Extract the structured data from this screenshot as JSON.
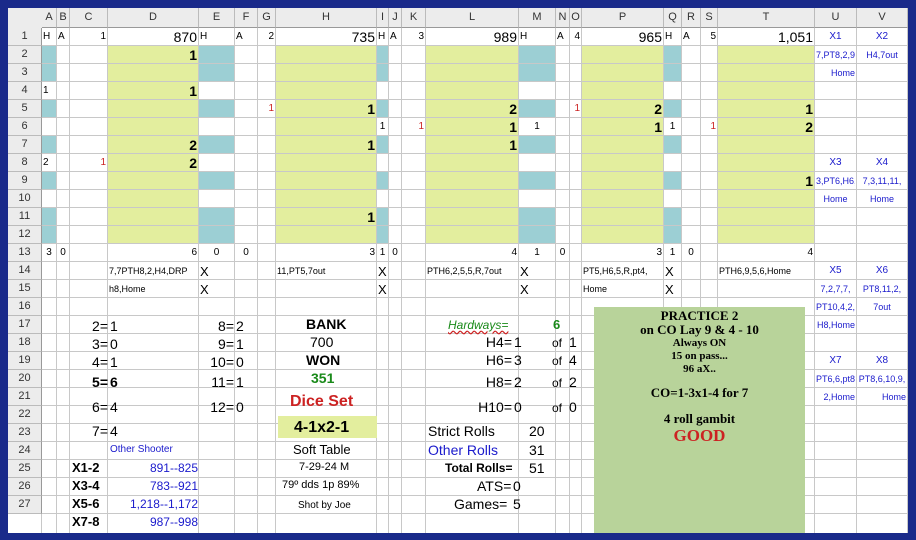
{
  "columns": [
    "A",
    "B",
    "C",
    "D",
    "E",
    "F",
    "G",
    "H",
    "I",
    "J",
    "K",
    "L",
    "M",
    "N",
    "O",
    "P",
    "Q",
    "R",
    "S",
    "T",
    "U",
    "V"
  ],
  "rows": [
    "1",
    "2",
    "3",
    "4",
    "5",
    "6",
    "7",
    "8",
    "9",
    "10",
    "11",
    "12",
    "13",
    "14",
    "15",
    "16",
    "17",
    "18",
    "19",
    "20",
    "21",
    "22",
    "23",
    "24",
    "25",
    "26",
    "27"
  ],
  "colors": {
    "teal": "#9ccfd4",
    "yellow": "#e3ee9e",
    "practice_bg": "#b8d39a",
    "blue_text": "#1a1acc",
    "red_text": "#cc2222",
    "green_text": "#1a8a1a",
    "frame": "#1a2a8a"
  },
  "blocks": [
    {
      "h": "H",
      "a": "A",
      "n": "1",
      "total": "870"
    },
    {
      "h": "H",
      "a": "A",
      "n": "2",
      "total": "735"
    },
    {
      "h": "H",
      "a": "A",
      "n": "3",
      "total": "989"
    },
    {
      "h": "H",
      "a": "A",
      "n": "4",
      "total": "965"
    },
    {
      "h": "H",
      "a": "A",
      "n": "5",
      "total": "1,051"
    }
  ],
  "cells": {
    "u1": "X1",
    "v1": "X2",
    "u2": "7,PT8,2,9,",
    "v2": "H4,7out",
    "u3": "Home",
    "d2": "1",
    "d4": "1",
    "d7": "2",
    "d8": "2",
    "d13": "6",
    "a4": "1",
    "a8": "2",
    "c8": "1",
    "a13": "3",
    "b13": "0",
    "e13": "0",
    "f13": "0",
    "g5": "1",
    "h5": "1",
    "h7": "1",
    "h11": "1",
    "i6": "1",
    "h13": "3",
    "i13": "1",
    "j13": "0",
    "k6": "1",
    "l5": "2",
    "l6": "1",
    "l7": "1",
    "m6": "1",
    "l13": "4",
    "m13": "1",
    "n13": "0",
    "o5": "1",
    "p5": "2",
    "p6": "1",
    "q6": "1",
    "p13": "3",
    "q13": "1",
    "r13": "0",
    "s6": "1",
    "t5": "1",
    "t6": "2",
    "t9": "1",
    "t13": "4",
    "u8": "X3",
    "v8": "X4",
    "u9": "3,PT6,H6,.",
    "v9": "7,3,11,11,",
    "u10": "Home",
    "v10": "Home",
    "u14": "X5",
    "v14": "X6",
    "u15": "7,2,7,7,",
    "v15": "PT8,11,2,",
    "u16": "PT10,4,2,",
    "v16": "7out",
    "u17": "H8,Home",
    "u19": "X7",
    "v19": "X8",
    "u20": "PT6,6,pt8,",
    "v20": "PT8,6,10,9,",
    "u21": "2,Home",
    "v21": "Home"
  },
  "roll_strings": [
    {
      "text": "7,7PTH8,2,H4,DRP",
      "mark": "X"
    },
    {
      "text": "h8,Home",
      "mark": "X"
    },
    {
      "text": "11,PT5,7out",
      "mark": "X"
    },
    {
      "text": "",
      "mark": "X"
    },
    {
      "text": "PTH6,2,5,5,R,7out",
      "mark": "X"
    },
    {
      "text": "",
      "mark": "X"
    },
    {
      "text": "PT5,H6,5,R,pt4,",
      "mark": "X"
    },
    {
      "text": "Home",
      "mark": "X"
    },
    {
      "text": "PTH6,9,5,6,Home",
      "mark": ""
    }
  ],
  "number_counts": [
    {
      "label": "2=",
      "value": "1"
    },
    {
      "label": "3=",
      "value": "0"
    },
    {
      "label": "4=",
      "value": "1"
    },
    {
      "label": "5=",
      "value": "6"
    },
    {
      "label": "6=",
      "value": "4"
    },
    {
      "label": "7=",
      "value": "4"
    },
    {
      "label": "8=",
      "value": "2"
    },
    {
      "label": "9=",
      "value": "1"
    },
    {
      "label": "10=",
      "value": "0"
    },
    {
      "label": "11=",
      "value": "1"
    },
    {
      "label": "12=",
      "value": "0"
    }
  ],
  "bank": {
    "bank_label": "BANK",
    "bank_value": "700",
    "won_label": "WON",
    "won_value": "351",
    "dice_set_label": "Dice Set",
    "dice_set_value": "4-1x2-1",
    "table": "Soft Table",
    "date": "7-29-24 M",
    "weather": "79º dds 1p 89%",
    "shooter": "Shot by Joe"
  },
  "other_shooter": {
    "title": "Other Shooter",
    "rows": [
      {
        "label": "X1-2",
        "value": "891--825"
      },
      {
        "label": "X3-4",
        "value": "783--921"
      },
      {
        "label": "X5-6",
        "value": "1,218--1,172"
      },
      {
        "label": "X7-8",
        "value": "987--998"
      }
    ]
  },
  "hardways": {
    "title": "Hardways=",
    "total": "6",
    "rows": [
      {
        "label": "H4=",
        "value": "1",
        "of": "of",
        "max": "1"
      },
      {
        "label": "H6=",
        "value": "3",
        "of": "of",
        "max": "4"
      },
      {
        "label": "H8=",
        "value": "2",
        "of": "of",
        "max": "2"
      },
      {
        "label": "H10=",
        "value": "0",
        "of": "of",
        "max": "0"
      }
    ]
  },
  "stats": {
    "strict_label": "Strict Rolls",
    "strict_value": "20",
    "other_label": "Other Rolls",
    "other_value": "31",
    "total_label": "Total Rolls=",
    "total_value": "51",
    "ats_label": "ATS=",
    "ats_value": "0",
    "games_label": "Games=",
    "games_value": "5"
  },
  "practice": {
    "line1": "PRACTICE 2",
    "line2": "on CO Lay 9 & 4 - 10",
    "line3": "Always ON",
    "line4": "15 on pass...",
    "line5": "96 aX..",
    "line6": "CO=1-3x1-4 for 7",
    "line7": "4 roll gambit",
    "line8": "GOOD"
  }
}
